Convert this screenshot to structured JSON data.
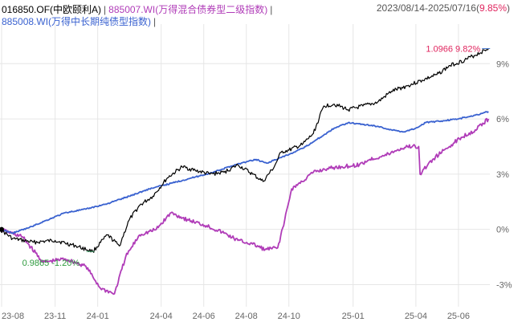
{
  "header": {
    "legend": [
      {
        "label": "016850.OF(中欧颐利A)",
        "color": "#000000"
      },
      {
        "label": "885007.WI(万得混合债券型二级指数)",
        "color": "#b03cb8"
      },
      {
        "label": "885008.WI(万得中长期纯债型指数)",
        "color": "#3a62d0"
      }
    ],
    "range_text": "2023/08/14-2025/07/16",
    "range_open": "(",
    "range_return": "9.85%",
    "range_close": ")"
  },
  "chart_data": {
    "type": "line",
    "title": "",
    "xlabel": "",
    "ylabel": "",
    "x_ticks": [
      "23-08",
      "23-11",
      "24-01",
      "24-04",
      "24-06",
      "24-08",
      "24-10",
      "25-01",
      "25-04",
      "25-06"
    ],
    "y_ticks": [
      "9%",
      "6%",
      "3%",
      "0%",
      "-3%"
    ],
    "y_tick_values": [
      9,
      6,
      3,
      0,
      -3
    ],
    "ylim": [
      -4.2,
      10.8
    ],
    "xlim": [
      "2023-08-14",
      "2025-07-16"
    ],
    "grid": true,
    "legend_position": "top-left",
    "annotations": {
      "max": {
        "text": "1.0966 9.82%",
        "x": "2025-07-14",
        "y": 9.82
      },
      "min": {
        "text": "0.9865 -1.20%",
        "x": "2023-12-25",
        "y": -1.2
      }
    },
    "series": [
      {
        "name": "016850.OF(中欧颐利A)",
        "color": "#000000",
        "points": [
          [
            "2023-08-14",
            0
          ],
          [
            "2023-09-01",
            -0.5
          ],
          [
            "2023-10-01",
            -0.7
          ],
          [
            "2023-11-01",
            -0.6
          ],
          [
            "2023-12-01",
            -0.9
          ],
          [
            "2023-12-25",
            -1.2
          ],
          [
            "2024-01-15",
            -0.3
          ],
          [
            "2024-02-01",
            -0.9
          ],
          [
            "2024-02-15",
            0.5
          ],
          [
            "2024-03-01",
            1.3
          ],
          [
            "2024-03-20",
            1.8
          ],
          [
            "2024-04-10",
            2.8
          ],
          [
            "2024-05-01",
            3.4
          ],
          [
            "2024-05-20",
            3.2
          ],
          [
            "2024-06-10",
            3.0
          ],
          [
            "2024-06-30",
            3.1
          ],
          [
            "2024-07-20",
            3.5
          ],
          [
            "2024-08-10",
            3.0
          ],
          [
            "2024-08-25",
            2.6
          ],
          [
            "2024-09-10",
            3.4
          ],
          [
            "2024-09-20",
            4.2
          ],
          [
            "2024-10-01",
            4.3
          ],
          [
            "2024-10-20",
            4.6
          ],
          [
            "2024-11-05",
            5.2
          ],
          [
            "2024-11-20",
            6.7
          ],
          [
            "2024-12-05",
            6.8
          ],
          [
            "2024-12-25",
            6.5
          ],
          [
            "2025-01-15",
            6.7
          ],
          [
            "2025-02-05",
            6.9
          ],
          [
            "2025-02-25",
            7.5
          ],
          [
            "2025-03-20",
            7.8
          ],
          [
            "2025-04-10",
            8.1
          ],
          [
            "2025-05-01",
            8.4
          ],
          [
            "2025-05-20",
            8.9
          ],
          [
            "2025-06-10",
            9.2
          ],
          [
            "2025-07-14",
            9.82
          ]
        ]
      },
      {
        "name": "885007.WI(万得混合债券型二级指数)",
        "color": "#b03cb8",
        "points": [
          [
            "2023-08-14",
            0
          ],
          [
            "2023-09-15",
            -0.4
          ],
          [
            "2023-10-15",
            -1.8
          ],
          [
            "2023-11-15",
            -1.6
          ],
          [
            "2023-12-15",
            -2.0
          ],
          [
            "2024-01-05",
            -3.2
          ],
          [
            "2024-01-25",
            -3.5
          ],
          [
            "2024-02-10",
            -1.5
          ],
          [
            "2024-03-01",
            -0.3
          ],
          [
            "2024-03-25",
            0.0
          ],
          [
            "2024-04-15",
            0.9
          ],
          [
            "2024-05-10",
            0.5
          ],
          [
            "2024-06-05",
            0.2
          ],
          [
            "2024-06-30",
            -0.2
          ],
          [
            "2024-07-20",
            -0.6
          ],
          [
            "2024-08-10",
            -0.8
          ],
          [
            "2024-08-28",
            -1.1
          ],
          [
            "2024-09-15",
            -1.0
          ],
          [
            "2024-09-25",
            0.5
          ],
          [
            "2024-10-05",
            2.2
          ],
          [
            "2024-10-20",
            2.6
          ],
          [
            "2024-11-05",
            3.1
          ],
          [
            "2024-11-25",
            3.3
          ],
          [
            "2024-12-15",
            3.4
          ],
          [
            "2025-01-10",
            3.5
          ],
          [
            "2025-01-25",
            3.8
          ],
          [
            "2025-02-15",
            4.0
          ],
          [
            "2025-03-05",
            4.3
          ],
          [
            "2025-03-20",
            4.5
          ],
          [
            "2025-04-05",
            4.5
          ],
          [
            "2025-04-07",
            3.0
          ],
          [
            "2025-04-25",
            3.8
          ],
          [
            "2025-05-15",
            4.4
          ],
          [
            "2025-06-05",
            5.0
          ],
          [
            "2025-06-25",
            5.4
          ],
          [
            "2025-07-14",
            6.0
          ]
        ]
      },
      {
        "name": "885008.WI(万得中长期纯债型指数)",
        "color": "#3a62d0",
        "points": [
          [
            "2023-08-14",
            0
          ],
          [
            "2023-09-01",
            -0.2
          ],
          [
            "2023-09-25",
            0.1
          ],
          [
            "2023-10-20",
            0.5
          ],
          [
            "2023-11-15",
            0.9
          ],
          [
            "2023-12-15",
            1.1
          ],
          [
            "2024-01-15",
            1.4
          ],
          [
            "2024-02-15",
            1.8
          ],
          [
            "2024-03-15",
            2.2
          ],
          [
            "2024-04-15",
            2.5
          ],
          [
            "2024-05-15",
            2.8
          ],
          [
            "2024-06-15",
            3.1
          ],
          [
            "2024-07-15",
            3.5
          ],
          [
            "2024-08-15",
            3.8
          ],
          [
            "2024-08-30",
            3.6
          ],
          [
            "2024-09-20",
            3.9
          ],
          [
            "2024-10-10",
            4.2
          ],
          [
            "2024-10-25",
            4.5
          ],
          [
            "2024-11-15",
            5.0
          ],
          [
            "2024-12-05",
            5.5
          ],
          [
            "2024-12-25",
            5.8
          ],
          [
            "2025-01-15",
            5.7
          ],
          [
            "2025-02-05",
            5.6
          ],
          [
            "2025-02-25",
            5.4
          ],
          [
            "2025-03-15",
            5.3
          ],
          [
            "2025-04-01",
            5.5
          ],
          [
            "2025-04-15",
            5.8
          ],
          [
            "2025-05-10",
            5.9
          ],
          [
            "2025-06-01",
            6.0
          ],
          [
            "2025-06-25",
            6.2
          ],
          [
            "2025-07-14",
            6.4
          ]
        ]
      }
    ]
  }
}
